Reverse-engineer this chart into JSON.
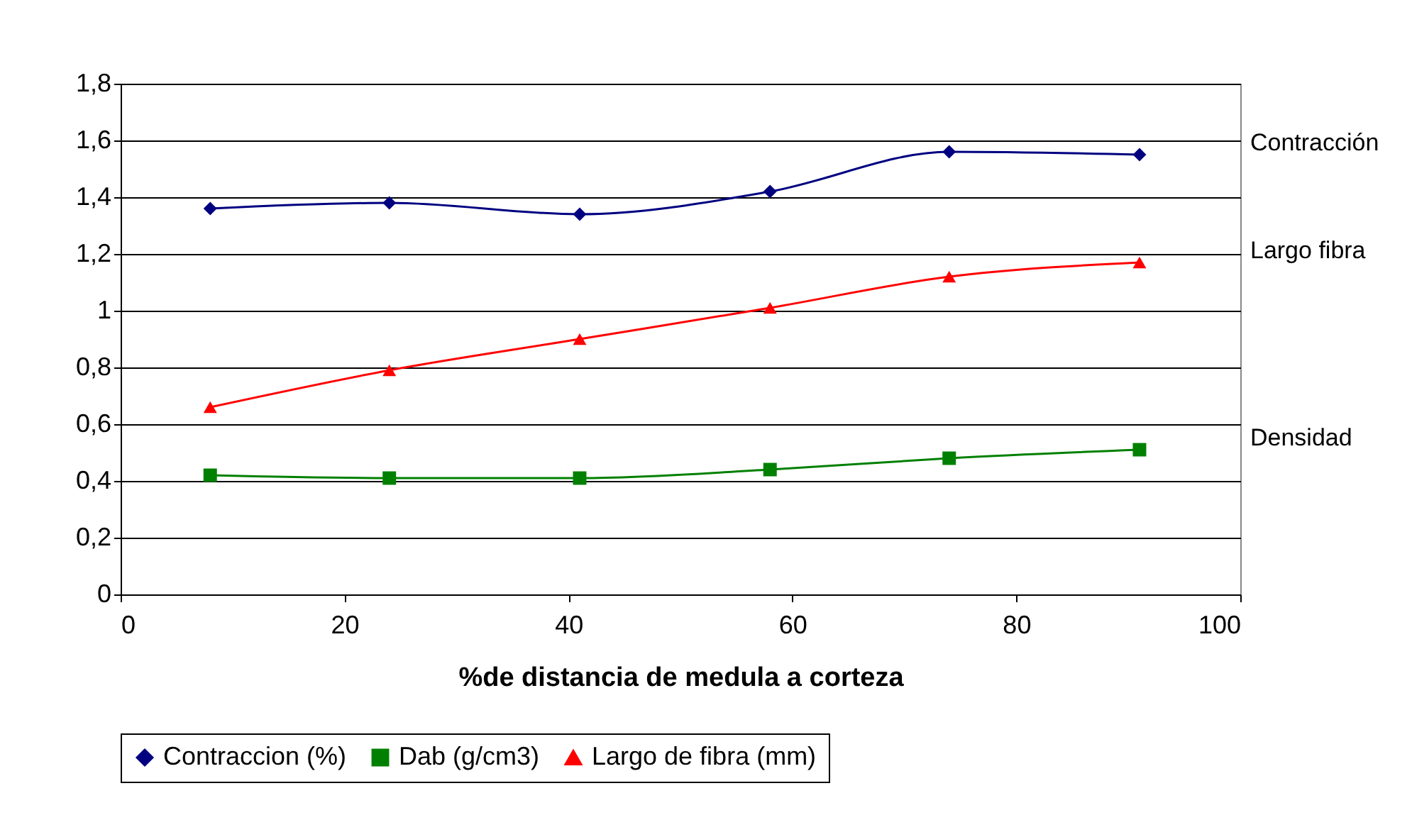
{
  "chart_data": {
    "type": "line",
    "xlabel": "%de distancia de medula a corteza",
    "x": [
      8,
      24,
      41,
      58,
      74,
      91
    ],
    "series": [
      {
        "name": "Contraccion (%)",
        "color": "#000080",
        "marker": "diamond",
        "values": [
          1.36,
          1.38,
          1.34,
          1.42,
          1.56,
          1.55
        ]
      },
      {
        "name": "Dab (g/cm3)",
        "color": "#008000",
        "marker": "square",
        "values": [
          0.42,
          0.41,
          0.41,
          0.44,
          0.48,
          0.51
        ]
      },
      {
        "name": "Largo de fibra (mm)",
        "color": "#ff0000",
        "marker": "triangle",
        "values": [
          0.66,
          0.79,
          0.9,
          1.01,
          1.12,
          1.17
        ]
      }
    ],
    "xlim": [
      0,
      100
    ],
    "xticks": [
      0,
      20,
      40,
      60,
      80,
      100
    ],
    "ylim": [
      0,
      1.8
    ],
    "yticks": [
      0,
      {
        "value": 0.2,
        "label": "0,2"
      },
      {
        "value": 0.4,
        "label": "0,4"
      },
      {
        "value": 0.6,
        "label": "0,6"
      },
      {
        "value": 0.8,
        "label": "0,8"
      },
      1,
      {
        "value": 1.2,
        "label": "1,2"
      },
      {
        "value": 1.4,
        "label": "1,4"
      },
      {
        "value": 1.6,
        "label": "1,6"
      },
      {
        "value": 1.8,
        "label": "1,8"
      }
    ],
    "grid": "y",
    "legend": "bottom",
    "annotations": [
      "Contracción",
      "Largo fibra",
      "Densidad"
    ]
  }
}
